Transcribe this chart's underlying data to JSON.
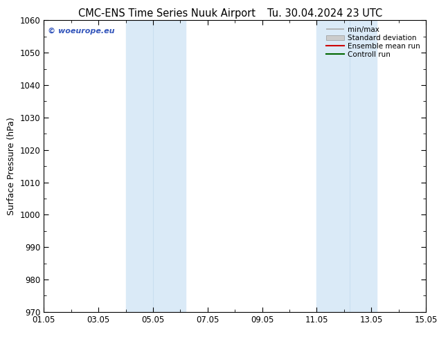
{
  "title_left": "CMC-ENS Time Series Nuuk Airport",
  "title_right": "Tu. 30.04.2024 23 UTC",
  "ylabel": "Surface Pressure (hPa)",
  "ylim": [
    970,
    1060
  ],
  "yticks": [
    970,
    980,
    990,
    1000,
    1010,
    1020,
    1030,
    1040,
    1050,
    1060
  ],
  "xlim_start": 0,
  "xlim_end": 14,
  "xtick_positions": [
    0,
    2,
    4,
    6,
    8,
    10,
    12,
    14
  ],
  "xtick_labels": [
    "01.05",
    "03.05",
    "05.05",
    "07.05",
    "09.05",
    "11.05",
    "13.05",
    "15.05"
  ],
  "shaded_bands": [
    {
      "x_start": 3.0,
      "x_end": 4.0,
      "color": "#daeaf7"
    },
    {
      "x_start": 4.0,
      "x_end": 5.2,
      "color": "#daeaf7"
    },
    {
      "x_start": 10.0,
      "x_end": 11.2,
      "color": "#daeaf7"
    },
    {
      "x_start": 11.2,
      "x_end": 12.2,
      "color": "#daeaf7"
    }
  ],
  "shade_color": "#daeaf7",
  "background_color": "#ffffff",
  "watermark_text": "© woeurope.eu",
  "watermark_color": "#3355bb",
  "legend_fontsize": 7.5,
  "title_fontsize": 10.5,
  "axis_label_fontsize": 9,
  "tick_fontsize": 8.5
}
